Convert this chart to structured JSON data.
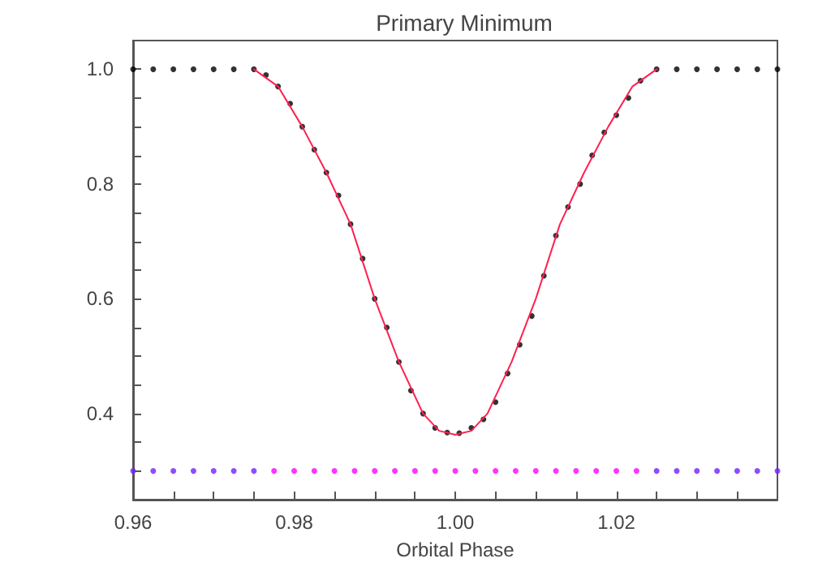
{
  "chart_data": {
    "type": "scatter",
    "title": "Primary Minimum",
    "xlabel": "Orbital Phase",
    "xlim": [
      0.96,
      1.04
    ],
    "ylim": [
      0.25,
      1.05
    ],
    "xticks": [
      0.96,
      {
        "value": 0.965,
        "label": null
      },
      {
        "value": 0.97,
        "label": null
      },
      {
        "value": 0.975,
        "label": null
      },
      0.98,
      {
        "value": 0.985,
        "label": null
      },
      {
        "value": 0.99,
        "label": null
      },
      {
        "value": 0.995,
        "label": null
      },
      {
        "value": 1,
        "label": "1.00"
      },
      {
        "value": 1.005,
        "label": null
      },
      {
        "value": 1.01,
        "label": null
      },
      {
        "value": 1.015,
        "label": null
      },
      1.02,
      {
        "value": 1.025,
        "label": null
      },
      {
        "value": 1.03,
        "label": null
      },
      {
        "value": 1.035,
        "label": null
      }
    ],
    "yticks": [
      {
        "value": 0.3,
        "label": null
      },
      {
        "value": 0.35,
        "label": null
      },
      0.4,
      {
        "value": 0.45,
        "label": null
      },
      {
        "value": 0.5,
        "label": null
      },
      {
        "value": 0.55,
        "label": null
      },
      0.6,
      {
        "value": 0.65,
        "label": null
      },
      {
        "value": 0.7,
        "label": null
      },
      {
        "value": 0.75,
        "label": null
      },
      0.8,
      {
        "value": 0.85,
        "label": null
      },
      {
        "value": 0.9,
        "label": null
      },
      {
        "value": 0.95,
        "label": null
      },
      {
        "value": 1,
        "label": "1.0"
      }
    ],
    "grid": false,
    "marker": "circle",
    "series": [
      {
        "color": "#000000",
        "x": [
          0.96,
          0.9625,
          0.965,
          0.9675,
          0.97,
          0.9725,
          0.975,
          0.9765,
          0.978,
          0.9795,
          0.981,
          0.9825,
          0.984,
          0.9855,
          0.987,
          0.9885,
          0.99,
          0.9915,
          0.993,
          0.9945,
          0.996,
          0.9975,
          0.999,
          1.0005,
          1.002,
          1.0035,
          1.005,
          1.0065,
          1.008,
          1.0095,
          1.011,
          1.0125,
          1.014,
          1.0155,
          1.017,
          1.0185,
          1.02,
          1.0215,
          1.023,
          1.025,
          1.0275,
          1.03,
          1.0325,
          1.035,
          1.0375,
          1.04
        ],
        "values": [
          1.0,
          1.0,
          1.0,
          1.0,
          1.0,
          1.0,
          1.0,
          0.99,
          0.97,
          0.94,
          0.9,
          0.86,
          0.82,
          0.78,
          0.73,
          0.67,
          0.6,
          0.55,
          0.49,
          0.44,
          0.4,
          0.375,
          0.367,
          0.366,
          0.375,
          0.39,
          0.42,
          0.47,
          0.52,
          0.57,
          0.64,
          0.71,
          0.76,
          0.8,
          0.85,
          0.89,
          0.92,
          0.95,
          0.98,
          1.0,
          1.0,
          1.0,
          1.0,
          1.0,
          1.0,
          1.0
        ]
      },
      {
        "type": "line",
        "marker": "none",
        "color": "#ff2050",
        "x": [
          0.975,
          0.978,
          0.981,
          0.984,
          0.987,
          0.99,
          0.993,
          0.996,
          0.998,
          1.0,
          1.002,
          1.004,
          1.007,
          1.01,
          1.013,
          1.016,
          1.019,
          1.022,
          1.025
        ],
        "values": [
          1.0,
          0.97,
          0.9,
          0.82,
          0.73,
          0.6,
          0.49,
          0.4,
          0.37,
          0.363,
          0.37,
          0.4,
          0.49,
          0.6,
          0.73,
          0.82,
          0.9,
          0.97,
          1.0
        ]
      },
      {
        "color": "#7020ff",
        "x": [
          0.96,
          0.9625,
          0.965,
          0.9675,
          0.97,
          0.9725,
          0.975,
          1.025,
          1.0275,
          1.03,
          1.0325,
          1.035,
          1.0375,
          1.04
        ],
        "values": [
          0.3,
          0.3,
          0.3,
          0.3,
          0.3,
          0.3,
          0.3,
          0.3,
          0.3,
          0.3,
          0.3,
          0.3,
          0.3,
          0.3
        ]
      },
      {
        "color": "#ff00ff",
        "x": [
          0.9775,
          0.98,
          0.9825,
          0.985,
          0.9875,
          0.99,
          0.9925,
          0.995,
          0.9975,
          1.0,
          1.0025,
          1.005,
          1.0075,
          1.01,
          1.0125,
          1.015,
          1.0175,
          1.02,
          1.0225
        ],
        "values": [
          0.3,
          0.3,
          0.3,
          0.3,
          0.3,
          0.3,
          0.3,
          0.3,
          0.3,
          0.3,
          0.3,
          0.3,
          0.3,
          0.3,
          0.3,
          0.3,
          0.3,
          0.3,
          0.3
        ]
      }
    ]
  }
}
